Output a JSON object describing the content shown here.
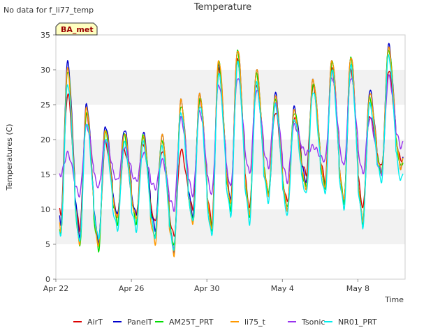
{
  "chart_data": {
    "type": "line",
    "title": "Temperature",
    "ylabel": "Temperatures (C)",
    "xlabel": "Time",
    "note": "No data for f_li77_temp",
    "badge": "BA_met",
    "ylim": [
      0,
      35
    ],
    "yticks": [
      0,
      5,
      10,
      15,
      20,
      25,
      30,
      35
    ],
    "xlim": [
      "2022-04-22",
      "2022-05-10T12:00"
    ],
    "xticks": [
      {
        "date": "2022-04-22",
        "label": "Apr 22"
      },
      {
        "date": "2022-04-26",
        "label": "Apr 26"
      },
      {
        "date": "2022-04-30",
        "label": "Apr 30"
      },
      {
        "date": "2022-05-04",
        "label": "May 4"
      },
      {
        "date": "2022-05-08",
        "label": "May 8"
      }
    ],
    "grid_bands": true,
    "legend_placement": "bottom",
    "days": [
      "2022-04-22",
      "2022-04-23",
      "2022-04-24",
      "2022-04-25",
      "2022-04-26",
      "2022-04-27",
      "2022-04-28",
      "2022-04-29",
      "2022-04-30",
      "2022-05-01",
      "2022-05-02",
      "2022-05-03",
      "2022-05-04",
      "2022-05-05",
      "2022-05-06",
      "2022-05-07",
      "2022-05-08",
      "2022-05-09",
      "2022-05-10"
    ],
    "series": [
      {
        "name": "AirT",
        "color": "#dd0000",
        "daily_max": [
          26.5,
          23.5,
          19.5,
          18.5,
          19.5,
          18.5,
          18.5,
          25.5,
          30,
          31.5,
          28,
          24,
          23,
          27.5,
          30,
          30,
          23.5,
          30,
          19
        ],
        "daily_min": [
          9,
          7,
          5,
          9,
          9,
          8,
          6,
          10,
          8,
          11,
          10,
          12,
          11,
          15,
          14,
          11,
          10,
          16,
          17
        ]
      },
      {
        "name": "PanelT",
        "color": "#0000cc",
        "daily_max": [
          31,
          25,
          22,
          21.5,
          21,
          20.5,
          25.5,
          26.5,
          31,
          33,
          30,
          26.5,
          24.5,
          28.5,
          31.5,
          32,
          27,
          33.5,
          20
        ],
        "daily_min": [
          8,
          6,
          5,
          9,
          9,
          7,
          4,
          9,
          7,
          11,
          9,
          12,
          10,
          14,
          13,
          11,
          8,
          15,
          16
        ]
      },
      {
        "name": "AM25T_PRT",
        "color": "#00dd00",
        "daily_max": [
          30,
          24,
          21,
          20.5,
          20.5,
          20,
          25,
          26,
          31,
          32.5,
          29.5,
          26,
          24,
          28,
          31,
          31.5,
          26,
          33,
          19.5
        ],
        "daily_min": [
          6,
          4.5,
          4,
          8,
          8,
          6,
          4.5,
          8,
          7,
          10,
          9,
          12,
          10,
          13,
          13,
          11,
          8,
          15,
          16
        ]
      },
      {
        "name": "li75_t",
        "color": "#ff9900",
        "daily_max": [
          30,
          24.5,
          21.5,
          21,
          20.5,
          20.5,
          25.5,
          26.5,
          31.5,
          33,
          30,
          26,
          24,
          28.5,
          31.5,
          32,
          26.5,
          33,
          19.5
        ],
        "daily_min": [
          7,
          5,
          4.5,
          8.5,
          8.5,
          5,
          3.5,
          8,
          7,
          10.5,
          9,
          12,
          10,
          13,
          13,
          11,
          8,
          15,
          16
        ]
      },
      {
        "name": "Tsonic",
        "color": "#9933ee",
        "daily_max": [
          18,
          22,
          20,
          19,
          18,
          17,
          23,
          24,
          28,
          29,
          27,
          25,
          22,
          19,
          29,
          29,
          23,
          29,
          20.5
        ],
        "daily_min": [
          15,
          12,
          13,
          14,
          14,
          13,
          10,
          12,
          12,
          13,
          15,
          16,
          14,
          18,
          17,
          16,
          15,
          15,
          19
        ]
      },
      {
        "name": "NR01_PRT",
        "color": "#00eeee",
        "daily_max": [
          28,
          22.5,
          20,
          19.5,
          19.5,
          19,
          24,
          25,
          29.5,
          31,
          28,
          25,
          23,
          27,
          30,
          30.5,
          25,
          32,
          18.5
        ],
        "daily_min": [
          6,
          5,
          5.5,
          7,
          7,
          6,
          4,
          8,
          6,
          9,
          8,
          11,
          9,
          12,
          12,
          10,
          7.5,
          14,
          14
        ]
      }
    ]
  }
}
